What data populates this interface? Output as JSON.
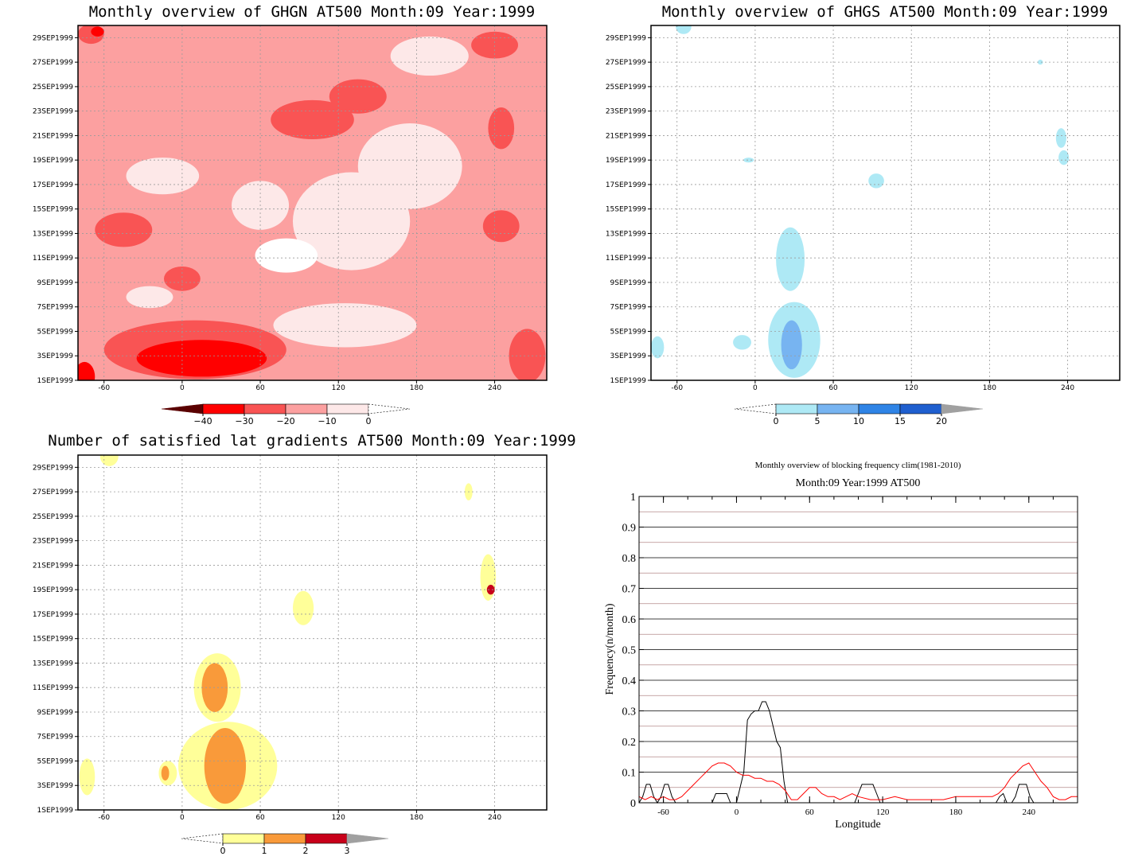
{
  "chart_data": [
    {
      "type": "heatmap",
      "title": "Monthly overview of GHGN AT500 Month:09 Year:1999",
      "x_ticks": [
        -60,
        0,
        60,
        120,
        180,
        240
      ],
      "y_ticks": [
        "1SEP1999",
        "3SEP1999",
        "5SEP1999",
        "7SEP1999",
        "9SEP1999",
        "11SEP1999",
        "13SEP1999",
        "15SEP1999",
        "17SEP1999",
        "19SEP1999",
        "21SEP1999",
        "23SEP1999",
        "25SEP1999",
        "27SEP1999",
        "29SEP1999"
      ],
      "xlim": [
        -80,
        280
      ],
      "colorbar": {
        "levels": [
          -40,
          -30,
          -20,
          -10,
          0
        ],
        "colors": [
          "#5a0000",
          "#ff0000",
          "#f95454",
          "#fca0a0",
          "#fde8e8",
          "#ffffff"
        ]
      },
      "background_color": "#fca0a0",
      "blobs": [
        {
          "lon": -70,
          "day": 29.3,
          "rlon": 10,
          "rday": 0.8,
          "color": "#f95454"
        },
        {
          "lon": -65,
          "day": 29.5,
          "rlon": 5,
          "rday": 0.4,
          "color": "#ff0000"
        },
        {
          "lon": 100,
          "day": 22.3,
          "rlon": 32,
          "rday": 1.6,
          "color": "#f95454"
        },
        {
          "lon": 135,
          "day": 24.2,
          "rlon": 22,
          "rday": 1.4,
          "color": "#f95454"
        },
        {
          "lon": 240,
          "day": 28.4,
          "rlon": 18,
          "rday": 1.1,
          "color": "#f95454"
        },
        {
          "lon": 245,
          "day": 21.6,
          "rlon": 10,
          "rday": 1.7,
          "color": "#f95454"
        },
        {
          "lon": -45,
          "day": 13.3,
          "rlon": 22,
          "rday": 1.4,
          "color": "#f95454"
        },
        {
          "lon": 0,
          "day": 9.3,
          "rlon": 14,
          "rday": 1.0,
          "color": "#f95454"
        },
        {
          "lon": 245,
          "day": 13.6,
          "rlon": 14,
          "rday": 1.3,
          "color": "#f95454"
        },
        {
          "lon": 10,
          "day": 3.5,
          "rlon": 70,
          "rday": 2.4,
          "color": "#f95454"
        },
        {
          "lon": 15,
          "day": 2.8,
          "rlon": 50,
          "rday": 1.5,
          "color": "#ff0000"
        },
        {
          "lon": -75,
          "day": 1.3,
          "rlon": 8,
          "rday": 1.2,
          "color": "#ff0000"
        },
        {
          "lon": 265,
          "day": 3.0,
          "rlon": 14,
          "rday": 2.2,
          "color": "#f95454"
        },
        {
          "lon": 190,
          "day": 27.5,
          "rlon": 30,
          "rday": 1.6,
          "color": "#fde8e8"
        },
        {
          "lon": -15,
          "day": 17.7,
          "rlon": 28,
          "rday": 1.5,
          "color": "#fde8e8"
        },
        {
          "lon": 60,
          "day": 15.3,
          "rlon": 22,
          "rday": 2.0,
          "color": "#fde8e8"
        },
        {
          "lon": 130,
          "day": 14.0,
          "rlon": 45,
          "rday": 4.0,
          "color": "#fde8e8"
        },
        {
          "lon": 175,
          "day": 18.5,
          "rlon": 40,
          "rday": 3.5,
          "color": "#fde8e8"
        },
        {
          "lon": 80,
          "day": 11.2,
          "rlon": 24,
          "rday": 1.4,
          "color": "#ffffff"
        },
        {
          "lon": 125,
          "day": 5.5,
          "rlon": 55,
          "rday": 1.8,
          "color": "#fde8e8"
        },
        {
          "lon": -25,
          "day": 7.8,
          "rlon": 18,
          "rday": 0.9,
          "color": "#fde8e8"
        }
      ]
    },
    {
      "type": "heatmap",
      "title": "Monthly overview of GHGS AT500 Month:09 Year:1999",
      "x_ticks": [
        -60,
        0,
        60,
        120,
        180,
        240
      ],
      "y_ticks": [
        "1SEP1999",
        "3SEP1999",
        "5SEP1999",
        "7SEP1999",
        "9SEP1999",
        "11SEP1999",
        "13SEP1999",
        "15SEP1999",
        "17SEP1999",
        "19SEP1999",
        "21SEP1999",
        "23SEP1999",
        "25SEP1999",
        "27SEP1999",
        "29SEP1999"
      ],
      "xlim": [
        -80,
        280
      ],
      "colorbar": {
        "levels": [
          0,
          5,
          10,
          15,
          20
        ],
        "colors": [
          "#ffffff",
          "#aee9f5",
          "#77b4f1",
          "#2f84e6",
          "#1f5fcf",
          "#a0a0a0"
        ]
      },
      "blobs": [
        {
          "lon": -55,
          "day": 29.9,
          "rlon": 6,
          "rday": 0.6,
          "color": "#aee9f5"
        },
        {
          "lon": 219,
          "day": 27.0,
          "rlon": 2,
          "rday": 0.2,
          "color": "#aee9f5"
        },
        {
          "lon": 235,
          "day": 20.8,
          "rlon": 4,
          "rday": 0.8,
          "color": "#aee9f5"
        },
        {
          "lon": 237,
          "day": 19.2,
          "rlon": 4,
          "rday": 0.6,
          "color": "#aee9f5"
        },
        {
          "lon": -5,
          "day": 19.0,
          "rlon": 4,
          "rday": 0.2,
          "color": "#aee9f5"
        },
        {
          "lon": 93,
          "day": 17.3,
          "rlon": 6,
          "rday": 0.6,
          "color": "#aee9f5"
        },
        {
          "lon": 27,
          "day": 10.9,
          "rlon": 11,
          "rday": 2.6,
          "color": "#aee9f5"
        },
        {
          "lon": 30,
          "day": 4.3,
          "rlon": 20,
          "rday": 3.1,
          "color": "#aee9f5"
        },
        {
          "lon": 28,
          "day": 3.9,
          "rlon": 8,
          "rday": 2.0,
          "color": "#77b4f1"
        },
        {
          "lon": -75,
          "day": 3.7,
          "rlon": 5,
          "rday": 0.9,
          "color": "#aee9f5"
        },
        {
          "lon": -10,
          "day": 4.1,
          "rlon": 7,
          "rday": 0.6,
          "color": "#aee9f5"
        }
      ]
    },
    {
      "type": "heatmap",
      "title": "Number of satisfied lat gradients AT500 Month:09 Year:1999",
      "x_ticks": [
        -60,
        0,
        60,
        120,
        180,
        240
      ],
      "y_ticks": [
        "1SEP1999",
        "3SEP1999",
        "5SEP1999",
        "7SEP1999",
        "9SEP1999",
        "11SEP1999",
        "13SEP1999",
        "15SEP1999",
        "17SEP1999",
        "19SEP1999",
        "21SEP1999",
        "23SEP1999",
        "25SEP1999",
        "27SEP1999",
        "29SEP1999"
      ],
      "xlim": [
        -80,
        280
      ],
      "colorbar": {
        "levels": [
          0,
          1,
          2,
          3
        ],
        "colors": [
          "#ffffff",
          "#ffff99",
          "#f99a3a",
          "#c8001a",
          "#a0a0a0"
        ]
      },
      "blobs": [
        {
          "lon": -56,
          "day": 29.9,
          "rlon": 7,
          "rday": 0.8,
          "color": "#ffff99"
        },
        {
          "lon": 220,
          "day": 27.0,
          "rlon": 3,
          "rday": 0.7,
          "color": "#ffff99"
        },
        {
          "lon": 235,
          "day": 20.0,
          "rlon": 6,
          "rday": 1.9,
          "color": "#ffff99"
        },
        {
          "lon": 237,
          "day": 19.0,
          "rlon": 3,
          "rday": 0.4,
          "color": "#c8001a"
        },
        {
          "lon": 93,
          "day": 17.5,
          "rlon": 8,
          "rday": 1.4,
          "color": "#ffff99"
        },
        {
          "lon": 27,
          "day": 11.0,
          "rlon": 18,
          "rday": 2.8,
          "color": "#ffff99"
        },
        {
          "lon": 25,
          "day": 11.0,
          "rlon": 10,
          "rday": 2.0,
          "color": "#f99a3a"
        },
        {
          "lon": 35,
          "day": 4.6,
          "rlon": 38,
          "rday": 3.6,
          "color": "#ffff99"
        },
        {
          "lon": 33,
          "day": 4.6,
          "rlon": 16,
          "rday": 3.1,
          "color": "#f99a3a"
        },
        {
          "lon": -73,
          "day": 3.7,
          "rlon": 6,
          "rday": 1.5,
          "color": "#ffff99"
        },
        {
          "lon": -11,
          "day": 4.0,
          "rlon": 7,
          "rday": 1.0,
          "color": "#ffff99"
        },
        {
          "lon": -13,
          "day": 4.0,
          "rlon": 3,
          "rday": 0.6,
          "color": "#f99a3a"
        }
      ]
    },
    {
      "type": "line",
      "title": "Monthly overview of blocking frequency clim(1981-2010)",
      "subtitle": "Month:09 Year:1999  AT500",
      "xlabel": "Longitude",
      "ylabel": "Frequency(n/month)",
      "xlim": [
        -80,
        280
      ],
      "ylim": [
        0,
        1
      ],
      "x_ticks": [
        -60,
        0,
        60,
        120,
        180,
        240
      ],
      "y_ticks": [
        0,
        0.1,
        0.2,
        0.3,
        0.4,
        0.5,
        0.6,
        0.7,
        0.8,
        0.9,
        1
      ],
      "series": [
        {
          "color": "#000000",
          "x": [
            -80,
            -77,
            -74,
            -71,
            -68,
            -65,
            -62,
            -59,
            -56,
            -53,
            -50,
            -20,
            -17,
            -14,
            -11,
            -8,
            -5,
            0,
            3,
            6,
            9,
            12,
            15,
            18,
            21,
            24,
            27,
            30,
            33,
            36,
            39,
            42,
            97,
            100,
            103,
            106,
            109,
            112,
            115,
            118,
            210,
            213,
            216,
            219,
            222,
            226,
            229,
            232,
            235,
            238,
            241,
            244,
            248,
            280
          ],
          "y": [
            0,
            0.02,
            0.06,
            0.06,
            0.02,
            0,
            0.02,
            0.06,
            0.06,
            0.02,
            0,
            0,
            0.03,
            0.03,
            0.03,
            0.03,
            0,
            0,
            0.05,
            0.1,
            0.27,
            0.29,
            0.3,
            0.3,
            0.33,
            0.33,
            0.3,
            0.25,
            0.2,
            0.18,
            0.07,
            0,
            0,
            0.03,
            0.06,
            0.06,
            0.06,
            0.06,
            0.03,
            0,
            0,
            0,
            0.02,
            0.03,
            0,
            0,
            0.02,
            0.06,
            0.06,
            0.06,
            0.02,
            0,
            0,
            0
          ]
        },
        {
          "color": "#ff0000",
          "x": [
            -80,
            -75,
            -70,
            -65,
            -60,
            -55,
            -50,
            -45,
            -40,
            -35,
            -30,
            -25,
            -20,
            -15,
            -10,
            -5,
            0,
            5,
            10,
            15,
            20,
            25,
            30,
            35,
            40,
            45,
            50,
            55,
            60,
            65,
            70,
            75,
            80,
            85,
            90,
            95,
            100,
            110,
            120,
            130,
            140,
            150,
            160,
            170,
            180,
            190,
            200,
            205,
            210,
            215,
            220,
            225,
            230,
            235,
            240,
            245,
            250,
            255,
            260,
            265,
            270,
            275,
            280
          ],
          "y": [
            0.02,
            0.01,
            0.02,
            0.01,
            0.02,
            0.01,
            0.01,
            0.02,
            0.04,
            0.06,
            0.08,
            0.1,
            0.12,
            0.13,
            0.13,
            0.12,
            0.1,
            0.09,
            0.09,
            0.08,
            0.08,
            0.07,
            0.07,
            0.06,
            0.04,
            0.01,
            0.01,
            0.03,
            0.05,
            0.05,
            0.03,
            0.02,
            0.02,
            0.01,
            0.02,
            0.03,
            0.02,
            0.01,
            0.01,
            0.02,
            0.01,
            0.01,
            0.01,
            0.01,
            0.02,
            0.02,
            0.02,
            0.02,
            0.02,
            0.03,
            0.05,
            0.08,
            0.1,
            0.12,
            0.13,
            0.1,
            0.07,
            0.05,
            0.02,
            0.01,
            0.01,
            0.02,
            0.02
          ]
        }
      ]
    }
  ]
}
